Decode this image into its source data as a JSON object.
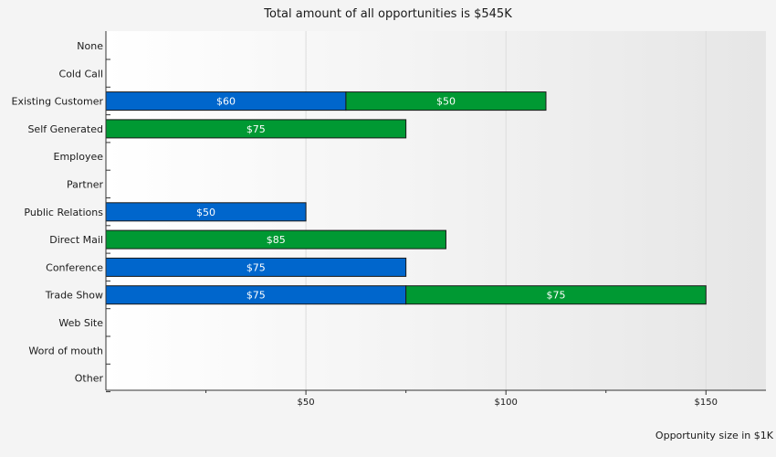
{
  "chart_data": {
    "type": "bar",
    "orientation": "horizontal",
    "stacked": true,
    "title": "Total amount of all opportunities is $545K",
    "xlabel": "Opportunity size in $1K",
    "ylabel": "",
    "xlim": [
      0,
      165
    ],
    "x_ticks": [
      50,
      100,
      150
    ],
    "x_tick_labels": [
      "$50",
      "$100",
      "$150"
    ],
    "grid": true,
    "legend": "none",
    "categories": [
      "None",
      "Cold Call",
      "Existing Customer",
      "Self Generated",
      "Employee",
      "Partner",
      "Public Relations",
      "Direct Mail",
      "Conference",
      "Trade Show",
      "Web Site",
      "Word of mouth",
      "Other"
    ],
    "series": [
      {
        "color": "#0066cc",
        "values": [
          0,
          0,
          60,
          0,
          0,
          0,
          50,
          0,
          75,
          75,
          0,
          0,
          0
        ],
        "labels": [
          "",
          "",
          "$60",
          "",
          "",
          "",
          "$50",
          "",
          "$75",
          "$75",
          "",
          "",
          ""
        ]
      },
      {
        "color": "#009933",
        "values": [
          0,
          0,
          50,
          75,
          0,
          0,
          0,
          85,
          0,
          75,
          0,
          0,
          0
        ],
        "labels": [
          "",
          "",
          "$50",
          "$75",
          "",
          "",
          "",
          "$85",
          "",
          "$75",
          "",
          "",
          ""
        ]
      }
    ]
  }
}
